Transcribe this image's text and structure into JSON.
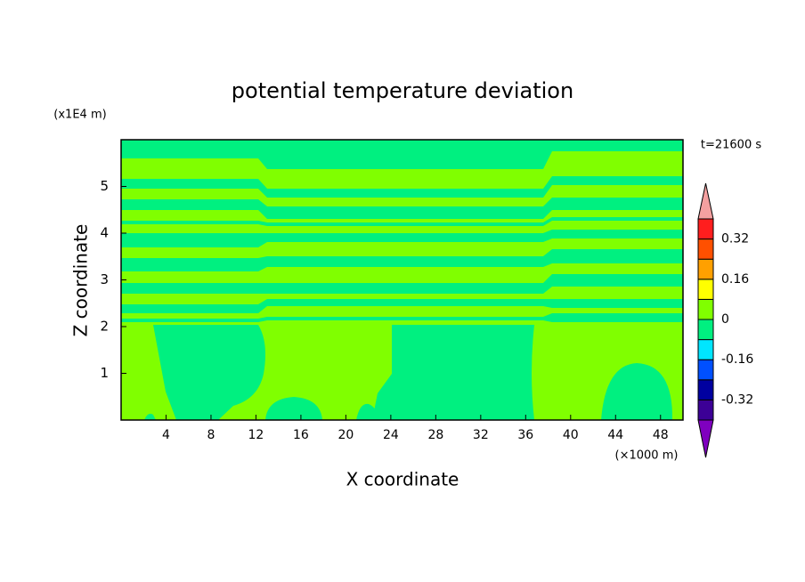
{
  "chart_data": {
    "type": "contour",
    "title": "potential temperature deviation",
    "xlabel": "X coordinate",
    "ylabel": "Z coordinate",
    "xunit": "(×1000 m)",
    "yunit": "(x1E4 m)",
    "annotation": "t=21600 s",
    "xlim": [
      0,
      50
    ],
    "ylim": [
      0,
      6
    ],
    "xticks": [
      4,
      8,
      12,
      16,
      20,
      24,
      28,
      32,
      36,
      40,
      44,
      48
    ],
    "yticks": [
      1,
      2,
      3,
      4,
      5
    ],
    "colorbar": {
      "levels": [
        -0.4,
        -0.32,
        -0.24,
        -0.16,
        -0.08,
        0,
        0.08,
        0.16,
        0.24,
        0.32,
        0.4
      ],
      "colors": [
        "#3c0096",
        "#0000a0",
        "#0050ff",
        "#00e6ff",
        "#00f080",
        "#80ff00",
        "#ffff00",
        "#ffa000",
        "#ff5000",
        "#ff1e1e"
      ],
      "extend_colors": [
        "#7f00bf",
        "#f4a0a0"
      ],
      "ticks": [
        -0.32,
        -0.16,
        0,
        0.16,
        0.32
      ]
    }
  }
}
